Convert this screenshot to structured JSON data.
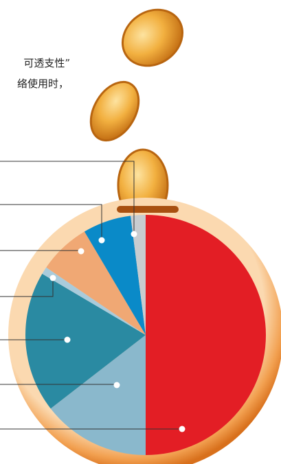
{
  "chart_data": {
    "type": "pie",
    "annotations": [
      "可透支性”",
      "络使用时，"
    ],
    "values": [
      50,
      14.5,
      19,
      1,
      7,
      6.5,
      2
    ],
    "colors": [
      "#e31e25",
      "#8ab8cc",
      "#2a8aa2",
      "#a9cbdb",
      "#f0a874",
      "#0a8ac8",
      "#c8ccd0"
    ]
  }
}
